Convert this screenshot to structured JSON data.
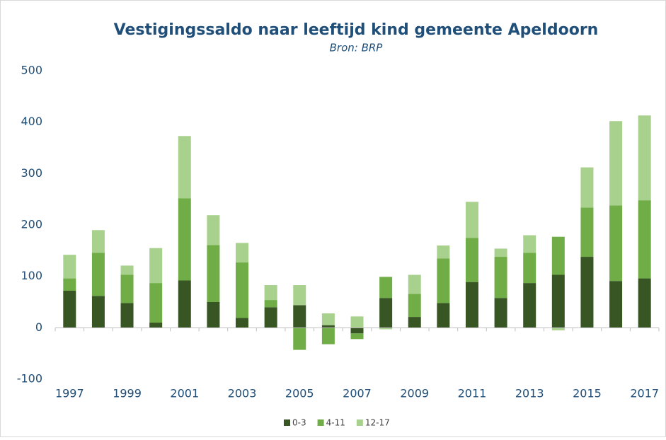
{
  "chart_data": {
    "type": "stacked_bar",
    "title": "Vestigingssaldo  naar leeftijd  kind  gemeente Apeldoorn",
    "subtitle": "Bron: BRP",
    "categories": [
      "1997",
      null,
      "1999",
      null,
      "2001",
      null,
      "2003",
      null,
      "2005",
      null,
      "2007",
      null,
      "2009",
      null,
      "2011",
      null,
      "2013",
      null,
      "2015",
      null,
      "2017"
    ],
    "series": [
      {
        "name": "0-3",
        "color": "#375623",
        "values": [
          72,
          62,
          48,
          10,
          92,
          50,
          19,
          40,
          44,
          5,
          -11,
          58,
          21,
          48,
          89,
          58,
          87,
          103,
          138,
          91,
          96
        ]
      },
      {
        "name": "4-11",
        "color": "#70ad47",
        "values": [
          24,
          84,
          55,
          77,
          160,
          111,
          108,
          14,
          -43,
          -32,
          -11,
          41,
          45,
          87,
          86,
          80,
          59,
          74,
          96,
          147,
          152
        ]
      },
      {
        "name": "12-17",
        "color": "#a9d18e",
        "values": [
          46,
          44,
          18,
          68,
          121,
          58,
          38,
          29,
          39,
          23,
          22,
          -3,
          37,
          25,
          70,
          16,
          34,
          -5,
          78,
          164,
          165
        ]
      }
    ],
    "ylim": [
      -100,
      500
    ],
    "yticks": [
      -100,
      0,
      100,
      200,
      300,
      400,
      500
    ],
    "grid": false,
    "legend": "bottom"
  }
}
